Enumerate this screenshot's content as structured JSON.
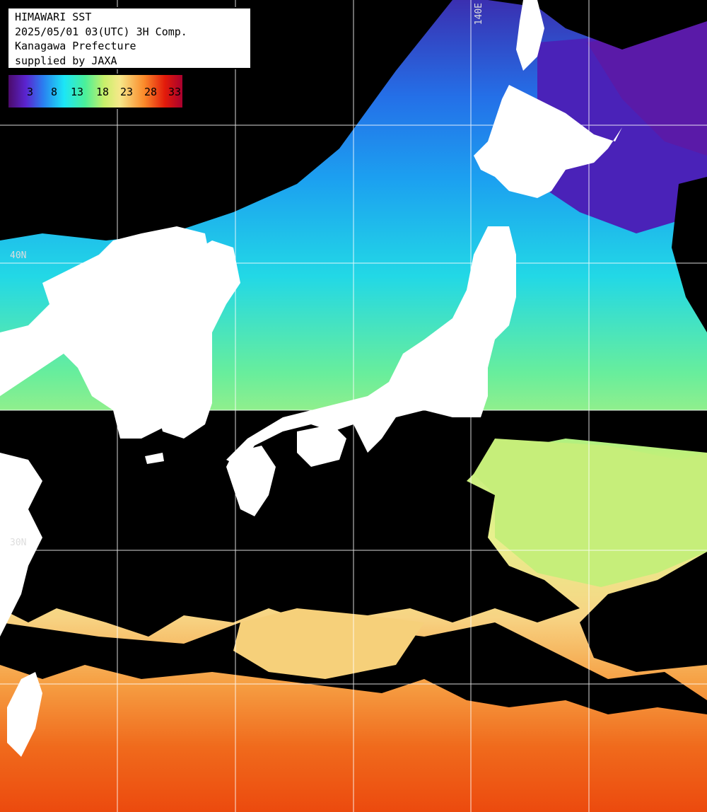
{
  "header": {
    "line1": "HIMAWARI SST",
    "line2": "2025/05/01 03(UTC) 3H Comp.",
    "line3": "Kanagawa Prefecture",
    "line4": "supplied by JAXA"
  },
  "legend": {
    "ticks": [
      "3",
      "8",
      "13",
      "18",
      "23",
      "28",
      "33"
    ],
    "unit_hint": "sea surface temperature scale"
  },
  "grid_labels": {
    "top_meridian": "140E",
    "lat_mid": "40N",
    "lat_low": "30N"
  },
  "colors": {
    "land": "#ffffff",
    "cloud_mask": "#000000",
    "grid": "#ffffff",
    "cold": "#4b12a0",
    "cool": "#1e8ff0",
    "mild": "#22e6e0",
    "temperate": "#9af07a",
    "warm": "#f5e690",
    "hot": "#f06018"
  }
}
